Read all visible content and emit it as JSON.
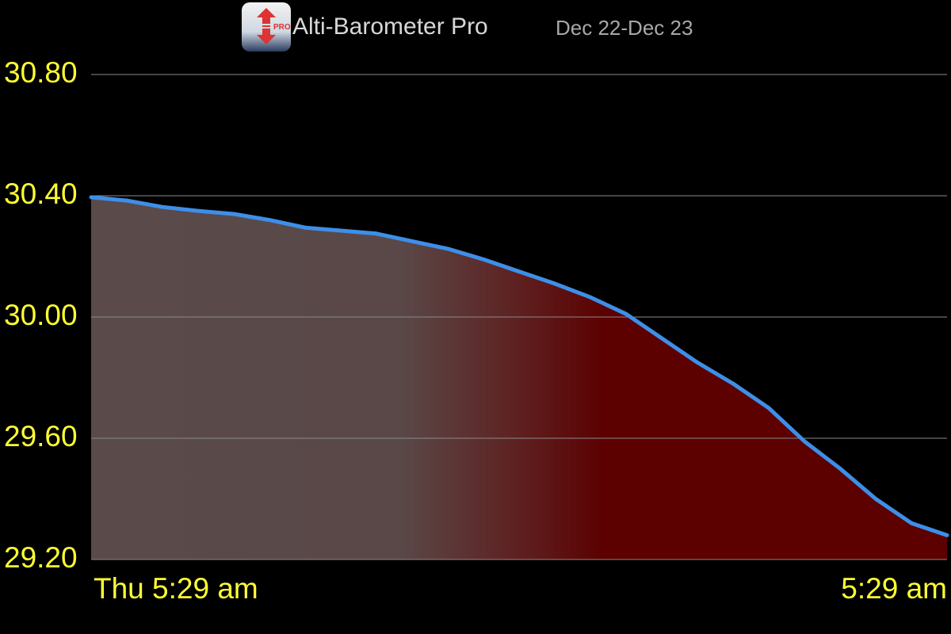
{
  "chart_data": {
    "type": "area",
    "title": "Alti-Barometer Pro",
    "subtitle": "Dec 22-Dec 23",
    "categories": [
      "Thu 5:29 am",
      null,
      null,
      null,
      null,
      null,
      null,
      null,
      null,
      null,
      null,
      null,
      null,
      null,
      null,
      null,
      null,
      null,
      null,
      null,
      null,
      null,
      null,
      null,
      "5:29 am"
    ],
    "values": [
      30.395,
      30.384,
      30.363,
      30.35,
      30.34,
      30.32,
      30.295,
      30.285,
      30.275,
      30.25,
      30.225,
      30.19,
      30.15,
      30.11,
      30.065,
      30.01,
      29.93,
      29.85,
      29.78,
      29.7,
      29.59,
      29.5,
      29.4,
      29.32,
      29.28
    ],
    "color": "#3d8fe8",
    "ylim": [
      29.2,
      30.8
    ],
    "yticks": [
      {
        "value": 29.2,
        "label": "29.20"
      },
      {
        "value": 29.6,
        "label": "29.60"
      },
      {
        "value": 30.0,
        "label": "30.00"
      },
      {
        "value": 30.4,
        "label": "30.40"
      },
      {
        "value": 30.8,
        "label": "30.80"
      }
    ],
    "grid": true
  }
}
